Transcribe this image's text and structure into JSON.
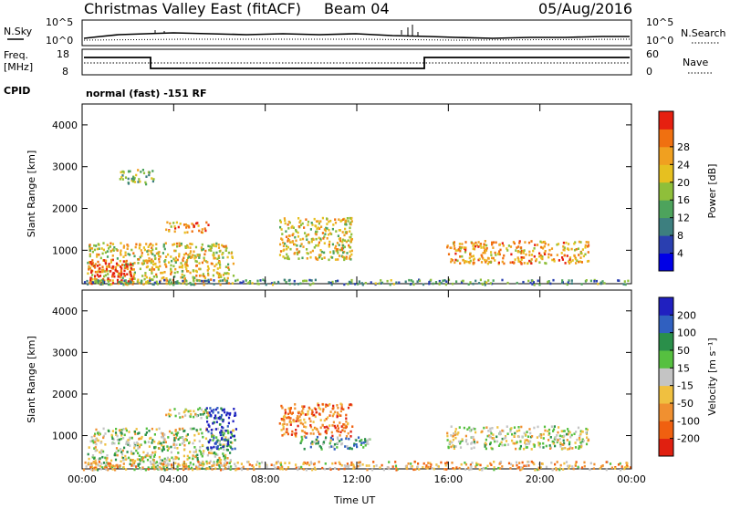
{
  "header": {
    "title": "Christmas Valley East (fitACF)",
    "beam": "Beam 04",
    "date": "05/Aug/2016"
  },
  "nsky_panel": {
    "left_label": "N.Sky",
    "left_tick_top": "10^5",
    "left_tick_bottom": "10^0",
    "right_label": "N.Search",
    "right_tick_top": "10^5",
    "right_tick_bottom": "10^0"
  },
  "freq_panel": {
    "left_label_1": "Freq.",
    "left_label_2": "[MHz]",
    "left_tick_top": "18",
    "left_tick_bottom": "8",
    "right_label": "Nave",
    "right_tick_top": "60",
    "right_tick_bottom": "0"
  },
  "cpid": {
    "label": "CPID",
    "text": "normal (fast) -151 RF"
  },
  "colors": {
    "power_scale": [
      "#0000e6",
      "#2a3fb0",
      "#3d7f7f",
      "#4da35c",
      "#8fbf3a",
      "#e6c020",
      "#f0a020",
      "#f07010",
      "#e62010"
    ],
    "velocity_scale": [
      "#2020c0",
      "#3060c0",
      "#2a8f4a",
      "#56c040",
      "#c4c4c4",
      "#f0c040",
      "#f09030",
      "#f06010",
      "#e02010"
    ]
  },
  "chart_data": [
    {
      "type": "heatmap",
      "title": "",
      "xlabel": "",
      "ylabel": "Slant Range [km]",
      "x_ticks": [
        "00:00",
        "04:00",
        "08:00",
        "12:00",
        "16:00",
        "20:00",
        "00:00"
      ],
      "y_ticks": [
        "1000",
        "2000",
        "3000",
        "4000"
      ],
      "ylim": [
        200,
        4500
      ],
      "colorbar_label": "Power [dB]",
      "colorbar_ticks": [
        "4",
        "8",
        "12",
        "16",
        "20",
        "24",
        "28"
      ],
      "regions": [
        {
          "t0": 0.2,
          "t1": 6.6,
          "r0": 200,
          "r1": 1200,
          "level": 0.62
        },
        {
          "t0": 0.3,
          "t1": 2.2,
          "r0": 200,
          "r1": 800,
          "level": 0.95
        },
        {
          "t0": 3.6,
          "t1": 5.5,
          "r0": 1450,
          "r1": 1700,
          "level": 0.75
        },
        {
          "t0": 1.6,
          "t1": 3.1,
          "r0": 2600,
          "r1": 2950,
          "level": 0.45
        },
        {
          "t0": 8.6,
          "t1": 11.8,
          "r0": 800,
          "r1": 1800,
          "level": 0.6
        },
        {
          "t0": 15.9,
          "t1": 22.1,
          "r0": 700,
          "r1": 1250,
          "level": 0.72
        },
        {
          "t0": 0.0,
          "t1": 24.0,
          "r0": 200,
          "r1": 320,
          "level": 0.35
        }
      ]
    },
    {
      "type": "heatmap",
      "title": "",
      "xlabel": "Time UT",
      "ylabel": "Slant Range [km]",
      "x_ticks": [
        "00:00",
        "04:00",
        "08:00",
        "12:00",
        "16:00",
        "20:00",
        "00:00"
      ],
      "y_ticks": [
        "1000",
        "2000",
        "3000",
        "4000"
      ],
      "ylim": [
        200,
        4500
      ],
      "colorbar_label": "Velocity [m s⁻¹]",
      "colorbar_ticks": [
        "200",
        "100",
        "50",
        "15",
        "-15",
        "-50",
        "-100",
        "-200"
      ],
      "regions": [
        {
          "t0": 0.2,
          "t1": 6.6,
          "r0": 200,
          "r1": 1200,
          "level": 0.5
        },
        {
          "t0": 5.4,
          "t1": 6.7,
          "r0": 700,
          "r1": 1700,
          "level": 0.05
        },
        {
          "t0": 3.6,
          "t1": 5.5,
          "r0": 1450,
          "r1": 1700,
          "level": 0.5
        },
        {
          "t0": 8.6,
          "t1": 11.8,
          "r0": 1000,
          "r1": 1800,
          "level": 0.8
        },
        {
          "t0": 9.5,
          "t1": 12.6,
          "r0": 700,
          "r1": 1000,
          "level": 0.35
        },
        {
          "t0": 15.9,
          "t1": 22.1,
          "r0": 700,
          "r1": 1250,
          "level": 0.5
        },
        {
          "t0": 0.0,
          "t1": 24.0,
          "r0": 200,
          "r1": 400,
          "level": 0.65
        }
      ]
    }
  ]
}
